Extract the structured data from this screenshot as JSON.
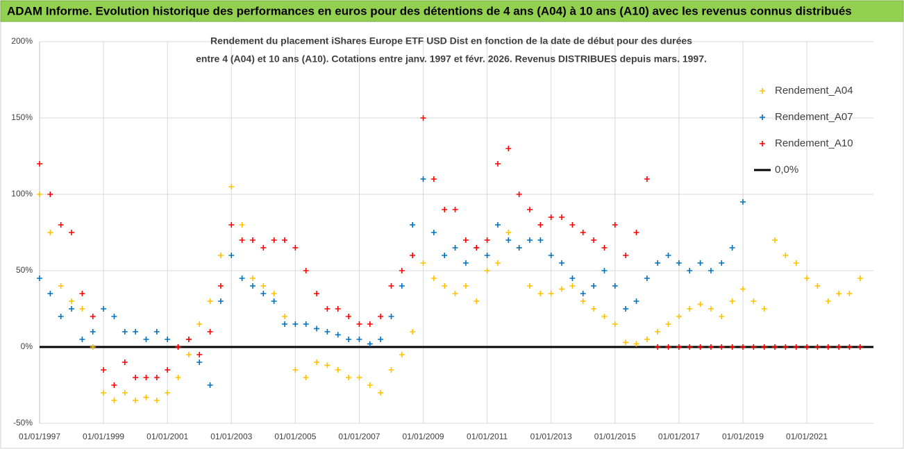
{
  "chart_data": {
    "type": "scatter",
    "title": "ADAM Informe. Evolution historique des performances en euros pour des détentions de 4 ans (A04) à 10 ans (A10) avec les revenus connus distribués",
    "subtitle_lines": [
      "Rendement du placement iShares Europe ETF USD Dist en fonction de la date de début pour des durées",
      "entre 4 (A04) et 10 ans (A10). Cotations entre janv. 1997 et févr. 2026. Revenus DISTRIBUES depuis mars. 1997."
    ],
    "x": [
      "01/01/1997",
      "01/05/1997",
      "01/09/1997",
      "01/01/1998",
      "01/05/1998",
      "01/09/1998",
      "01/01/1999",
      "01/05/1999",
      "01/09/1999",
      "01/01/2000",
      "01/05/2000",
      "01/09/2000",
      "01/01/2001",
      "01/05/2001",
      "01/09/2001",
      "01/01/2002",
      "01/05/2002",
      "01/09/2002",
      "01/01/2003",
      "01/05/2003",
      "01/09/2003",
      "01/01/2004",
      "01/05/2004",
      "01/09/2004",
      "01/01/2005",
      "01/05/2005",
      "01/09/2005",
      "01/01/2006",
      "01/05/2006",
      "01/09/2006",
      "01/01/2007",
      "01/05/2007",
      "01/09/2007",
      "01/01/2008",
      "01/05/2008",
      "01/09/2008",
      "01/01/2009",
      "01/05/2009",
      "01/09/2009",
      "01/01/2010",
      "01/05/2010",
      "01/09/2010",
      "01/01/2011",
      "01/05/2011",
      "01/09/2011",
      "01/01/2012",
      "01/05/2012",
      "01/09/2012",
      "01/01/2013",
      "01/05/2013",
      "01/09/2013",
      "01/01/2014",
      "01/05/2014",
      "01/09/2014",
      "01/01/2015",
      "01/05/2015",
      "01/09/2015",
      "01/01/2016",
      "01/05/2016",
      "01/09/2016",
      "01/01/2017",
      "01/05/2017",
      "01/09/2017",
      "01/01/2018",
      "01/05/2018",
      "01/09/2018",
      "01/01/2019",
      "01/05/2019",
      "01/09/2019",
      "01/01/2020",
      "01/05/2020",
      "01/09/2020",
      "01/01/2021",
      "01/05/2021",
      "01/09/2021",
      "01/01/2022",
      "01/05/2022",
      "01/09/2022"
    ],
    "series": [
      {
        "name": "Rendement_A04",
        "color": "#ffc000",
        "values": [
          100,
          75,
          40,
          30,
          25,
          0,
          -30,
          -35,
          -30,
          -35,
          -33,
          -35,
          -30,
          -20,
          -5,
          15,
          30,
          60,
          105,
          80,
          45,
          40,
          35,
          20,
          -15,
          -20,
          -10,
          -12,
          -15,
          -20,
          -20,
          -25,
          -30,
          -15,
          -5,
          10,
          55,
          45,
          40,
          35,
          40,
          30,
          50,
          55,
          75,
          65,
          40,
          35,
          35,
          38,
          40,
          30,
          25,
          20,
          15,
          3,
          2,
          5,
          10,
          15,
          20,
          25,
          28,
          25,
          20,
          30,
          38,
          30,
          25,
          70,
          60,
          55,
          45,
          40,
          30,
          35,
          35,
          45
        ]
      },
      {
        "name": "Rendement_A07",
        "color": "#0070c0",
        "values": [
          45,
          35,
          20,
          25,
          5,
          10,
          25,
          20,
          10,
          10,
          5,
          10,
          5,
          0,
          5,
          -10,
          -25,
          30,
          60,
          45,
          40,
          35,
          30,
          15,
          15,
          15,
          12,
          10,
          8,
          5,
          5,
          2,
          5,
          20,
          40,
          80,
          110,
          75,
          60,
          65,
          55,
          65,
          60,
          80,
          70,
          65,
          70,
          70,
          60,
          55,
          45,
          35,
          40,
          50,
          40,
          25,
          30,
          45,
          55,
          60,
          55,
          50,
          55,
          50,
          55,
          65,
          95,
          null,
          null,
          null,
          null,
          null,
          null,
          null,
          null,
          null,
          null,
          null
        ]
      },
      {
        "name": "Rendement_A10",
        "color": "#ff0000",
        "values": [
          120,
          100,
          80,
          75,
          35,
          20,
          -15,
          -25,
          -10,
          -20,
          -20,
          -20,
          -15,
          0,
          5,
          -5,
          10,
          40,
          80,
          70,
          70,
          65,
          70,
          70,
          65,
          50,
          35,
          25,
          25,
          20,
          15,
          15,
          20,
          40,
          50,
          60,
          150,
          110,
          90,
          90,
          70,
          65,
          70,
          120,
          130,
          100,
          90,
          80,
          85,
          85,
          80,
          75,
          70,
          65,
          80,
          60,
          75,
          110,
          0,
          0,
          0,
          0,
          0,
          0,
          0,
          0,
          0,
          0,
          0,
          0,
          0,
          0,
          0,
          0,
          0,
          0,
          0,
          0
        ]
      }
    ],
    "reference_line": {
      "name": "0,0%",
      "value": 0,
      "color": "#000000"
    },
    "xlim": [
      "01/01/1997",
      "01/02/2023"
    ],
    "xticks": [
      "01/01/1997",
      "01/01/1999",
      "01/01/2001",
      "01/01/2003",
      "01/01/2005",
      "01/01/2007",
      "01/01/2009",
      "01/01/2011",
      "01/01/2013",
      "01/01/2015",
      "01/01/2017",
      "01/01/2019",
      "01/01/2021"
    ],
    "ylim": [
      -50,
      200
    ],
    "yticks": [
      {
        "value": -50,
        "label": "-50%"
      },
      {
        "value": 0,
        "label": "0%"
      },
      {
        "value": 50,
        "label": "50%"
      },
      {
        "value": 100,
        "label": "100%"
      },
      {
        "value": 150,
        "label": "150%"
      },
      {
        "value": 200,
        "label": "200%"
      }
    ],
    "grid": true,
    "legend": "right"
  }
}
